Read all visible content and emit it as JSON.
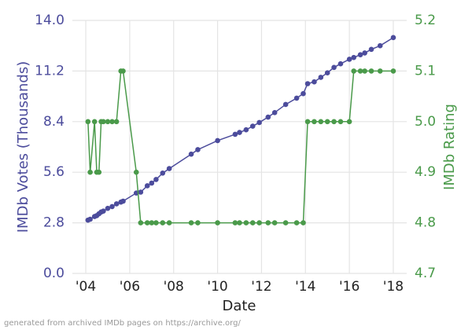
{
  "chart_data": {
    "type": "line",
    "xlabel": "Date",
    "ylabel": "IMDb Votes (Thousands)",
    "y2label": "IMDb Rating",
    "footnote": "generated from archived IMDb pages on https://archive.org/",
    "x": [
      2004.1,
      2004.2,
      2004.4,
      2004.5,
      2004.6,
      2004.7,
      2004.8,
      2005.0,
      2005.2,
      2005.4,
      2005.6,
      2005.7,
      2006.3,
      2006.5,
      2006.8,
      2007.0,
      2007.2,
      2007.5,
      2007.8,
      2008.8,
      2009.1,
      2010.0,
      2010.8,
      2011.0,
      2011.3,
      2011.6,
      2011.9,
      2012.3,
      2012.6,
      2013.1,
      2013.6,
      2013.9,
      2014.1,
      2014.4,
      2014.7,
      2015.0,
      2015.3,
      2015.6,
      2016.0,
      2016.2,
      2016.5,
      2016.7,
      2017.0,
      2017.4,
      2018.0
    ],
    "series": [
      {
        "name": "IMDb Votes (Thousands)",
        "color": "#4c4c9c",
        "axis": "y",
        "values": [
          2.95,
          3.0,
          3.15,
          3.2,
          3.3,
          3.4,
          3.45,
          3.6,
          3.7,
          3.85,
          3.95,
          4.0,
          4.45,
          4.5,
          4.85,
          5.0,
          5.2,
          5.55,
          5.8,
          6.6,
          6.85,
          7.35,
          7.7,
          7.8,
          7.95,
          8.15,
          8.35,
          8.65,
          8.9,
          9.35,
          9.7,
          9.95,
          10.5,
          10.6,
          10.85,
          11.1,
          11.4,
          11.6,
          11.85,
          11.95,
          12.1,
          12.2,
          12.4,
          12.6,
          13.05
        ]
      },
      {
        "name": "IMDb Rating",
        "color": "#4a9a4a",
        "axis": "y2",
        "values": [
          5.0,
          4.9,
          5.0,
          4.9,
          4.9,
          5.0,
          5.0,
          5.0,
          5.0,
          5.0,
          5.1,
          5.1,
          4.9,
          4.8,
          4.8,
          4.8,
          4.8,
          4.8,
          4.8,
          4.8,
          4.8,
          4.8,
          4.8,
          4.8,
          4.8,
          4.8,
          4.8,
          4.8,
          4.8,
          4.8,
          4.8,
          4.8,
          5.0,
          5.0,
          5.0,
          5.0,
          5.0,
          5.0,
          5.0,
          5.1,
          5.1,
          5.1,
          5.1,
          5.1,
          5.1
        ]
      }
    ],
    "xlim": [
      2003.39,
      2018.61
    ],
    "xticks": [
      {
        "value": 2004,
        "label": "'04"
      },
      {
        "value": 2006,
        "label": "'06"
      },
      {
        "value": 2008,
        "label": "'08"
      },
      {
        "value": 2010,
        "label": "'10"
      },
      {
        "value": 2012,
        "label": "'12"
      },
      {
        "value": 2014,
        "label": "'14"
      },
      {
        "value": 2016,
        "label": "'16"
      },
      {
        "value": 2018,
        "label": "'18"
      }
    ],
    "ylim": [
      0,
      14
    ],
    "yticks": [
      {
        "value": 0,
        "label": "0.0"
      },
      2.8,
      5.6,
      8.4,
      11.2,
      {
        "value": 14,
        "label": "14.0"
      }
    ],
    "y2lim": [
      4.7,
      5.2
    ],
    "y2ticks": [
      4.7,
      4.8,
      4.9,
      {
        "value": 5,
        "label": "5.0"
      },
      5.1,
      5.2
    ],
    "grid": true
  }
}
